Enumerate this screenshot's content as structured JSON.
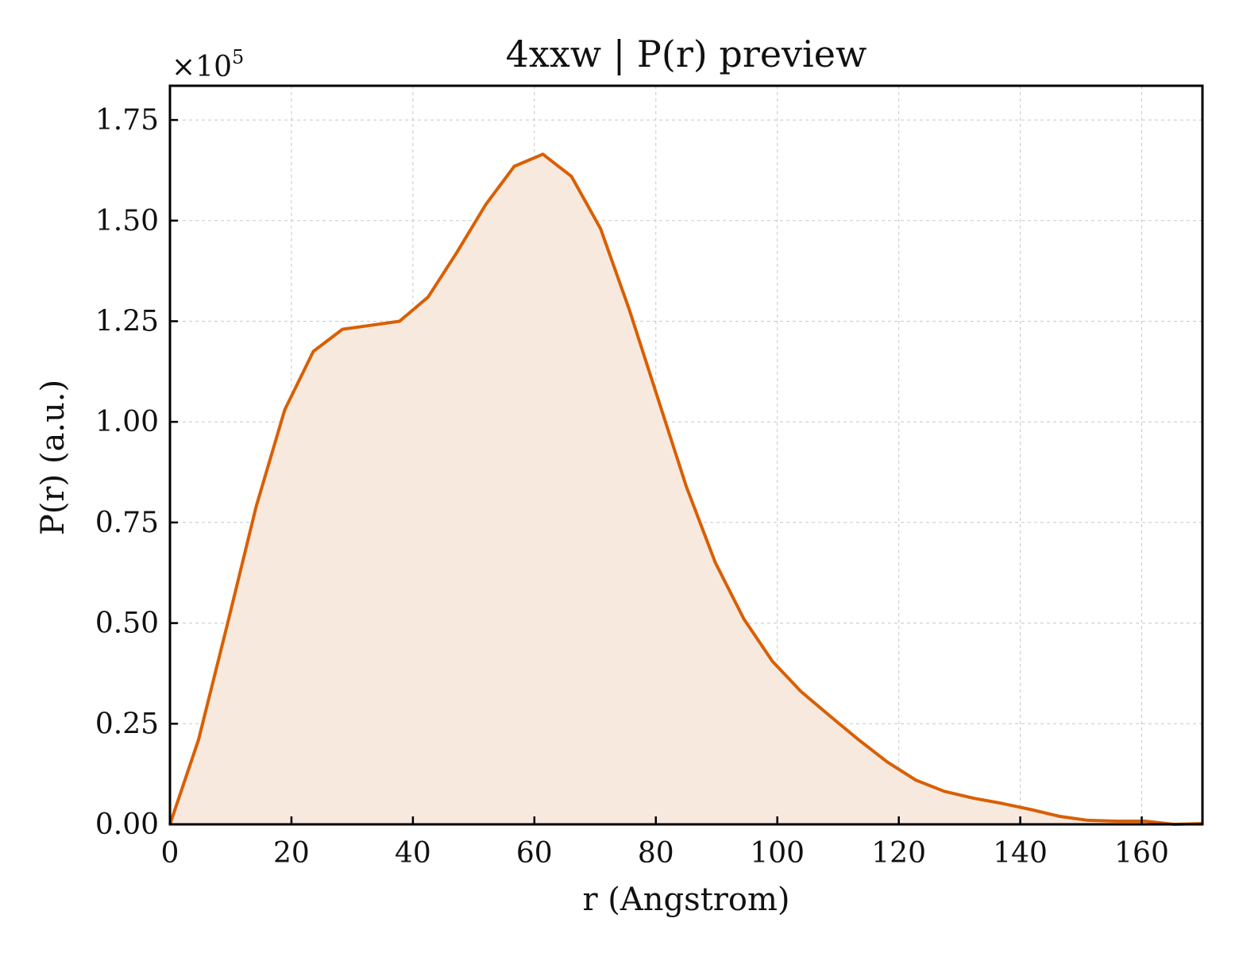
{
  "chart_data": {
    "type": "area",
    "title": "4xxw | P(r) preview",
    "xlabel": "r (Angstrom)",
    "ylabel": "P(r) (a.u.)",
    "y_multiplier_label": "×10",
    "y_multiplier_exponent": "5",
    "xlim": [
      0,
      170
    ],
    "ylim": [
      0,
      1.835
    ],
    "xticks": [
      0,
      20,
      40,
      60,
      80,
      100,
      120,
      140,
      160
    ],
    "yticks": [
      0.0,
      0.25,
      0.5,
      0.75,
      1.0,
      1.25,
      1.5,
      1.75
    ],
    "xtick_labels": [
      "0",
      "20",
      "40",
      "60",
      "80",
      "100",
      "120",
      "140",
      "160"
    ],
    "ytick_labels": [
      "0.00",
      "0.25",
      "0.50",
      "0.75",
      "1.00",
      "1.25",
      "1.50",
      "1.75"
    ],
    "grid": true,
    "line_color": "#d95f02",
    "fill_color": "#f8e9df",
    "series": [
      {
        "x": [
          0,
          4.7,
          9.5,
          14.2,
          18.9,
          23.6,
          28.4,
          33.1,
          37.8,
          42.5,
          47.2,
          52.0,
          56.7,
          61.4,
          66.1,
          70.9,
          75.6,
          80.3,
          85.0,
          89.8,
          94.5,
          99.2,
          103.9,
          108.6,
          113.4,
          118.1,
          122.8,
          127.5,
          132.3,
          137.0,
          141.7,
          146.4,
          151.1,
          155.9,
          160.6,
          165.3,
          170.0
        ],
        "y": [
          0.0,
          0.21,
          0.5,
          0.79,
          1.03,
          1.175,
          1.23,
          1.24,
          1.25,
          1.31,
          1.42,
          1.54,
          1.635,
          1.665,
          1.61,
          1.48,
          1.28,
          1.06,
          0.84,
          0.65,
          0.51,
          0.405,
          0.33,
          0.27,
          0.21,
          0.155,
          0.11,
          0.082,
          0.065,
          0.052,
          0.037,
          0.02,
          0.01,
          0.008,
          0.008,
          0.0,
          0.002
        ]
      }
    ]
  }
}
